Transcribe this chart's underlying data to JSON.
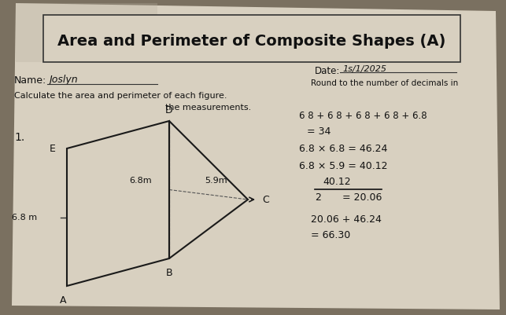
{
  "title": "Area and Perimeter of Composite Shapes (A)",
  "bg_color": "#7a7060",
  "paper_color": "#d8d0c0",
  "paper_inner_color": "#ccc5b5",
  "date_label": "Date:",
  "date_value": "1s/1/2025",
  "name_label": "Name:",
  "name_value": "Joslyn",
  "problem_number": "1.",
  "label_E": "E",
  "label_D": "D",
  "label_B": "B",
  "label_A": "A",
  "label_C": "C",
  "dim_left": "6.8 m",
  "dim_horiz": "6.8m",
  "dim_slant": "5.9m",
  "calc_line1": "6 8 + 6 8 + 6 8 + 6 8 + 6.8",
  "calc_line2": "= 34",
  "calc_line3": "6.8 × 6.8 = 46.24",
  "calc_line4": "6.8 × 5.9 = 40.12",
  "calc_line5": "40.12",
  "calc_line6": "————  = 20.06",
  "calc_line7": "2",
  "calc_line8": "20 06 + 46.24",
  "calc_line9": "= 66.30"
}
